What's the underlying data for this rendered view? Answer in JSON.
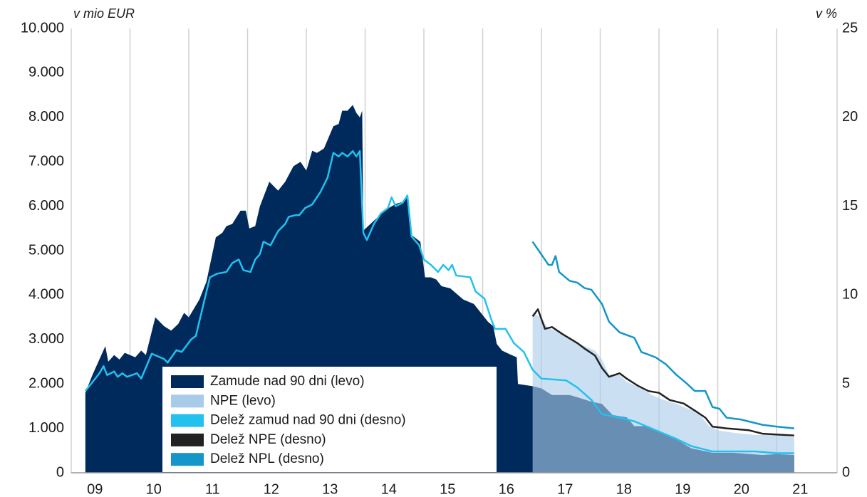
{
  "chart_data": {
    "type": "area",
    "y_label": "v mio EUR",
    "y2_label": "v %",
    "xlim": [
      2009,
      2022.03
    ],
    "xticks": [
      {
        "value": 2009,
        "label": "09"
      },
      {
        "value": 2010,
        "label": "10"
      },
      {
        "value": 2011,
        "label": "11"
      },
      {
        "value": 2012,
        "label": "12"
      },
      {
        "value": 2013,
        "label": "13"
      },
      {
        "value": 2014,
        "label": "14"
      },
      {
        "value": 2015,
        "label": "15"
      },
      {
        "value": 2016,
        "label": "16"
      },
      {
        "value": 2017,
        "label": "17"
      },
      {
        "value": 2018,
        "label": "18"
      },
      {
        "value": 2019,
        "label": "19"
      },
      {
        "value": 2020,
        "label": "20"
      },
      {
        "value": 2021,
        "label": "21"
      }
    ],
    "ylim": [
      0,
      10000
    ],
    "yticks": [
      0,
      {
        "value": 1000,
        "label": "1.000"
      },
      {
        "value": 2000,
        "label": "2.000"
      },
      {
        "value": 3000,
        "label": "3.000"
      },
      {
        "value": 4000,
        "label": "4.000"
      },
      {
        "value": 5000,
        "label": "5.000"
      },
      {
        "value": 6000,
        "label": "6.000"
      },
      {
        "value": 7000,
        "label": "7.000"
      },
      {
        "value": 8000,
        "label": "8.000"
      },
      {
        "value": 9000,
        "label": "9.000"
      },
      {
        "value": 10000,
        "label": "10.000"
      }
    ],
    "y2lim": [
      0,
      25
    ],
    "y2ticks": [
      0,
      5,
      10,
      15,
      20,
      25
    ],
    "grid": true,
    "series": [
      {
        "name": "Zamude nad 90 dni (levo)",
        "color": "#002a5c",
        "kind": "area",
        "x": [
          2009.24,
          2009.36,
          2009.58,
          2009.63,
          2009.73,
          2009.82,
          2009.91,
          2010.09,
          2010.19,
          2010.27,
          2010.43,
          2010.58,
          2010.7,
          2010.82,
          2010.92,
          2011.0,
          2011.18,
          2011.3,
          2011.46,
          2011.57,
          2011.64,
          2011.74,
          2011.88,
          2011.97,
          2012.03,
          2012.13,
          2012.21,
          2012.37,
          2012.52,
          2012.64,
          2012.78,
          2012.9,
          2013.0,
          2013.1,
          2013.18,
          2013.3,
          2013.46,
          2013.55,
          2013.61,
          2013.7,
          2013.79,
          2013.85,
          2013.91,
          2013.95,
          2013.97,
          2014.21,
          2014.39,
          2014.52,
          2014.64,
          2014.72,
          2014.79,
          2014.94,
          2015.02,
          2015.12,
          2015.21,
          2015.3,
          2015.45,
          2015.67,
          2015.85,
          2015.97,
          2016.09,
          2016.18,
          2016.24,
          2016.33,
          2016.49,
          2016.58,
          2016.6,
          2016.85,
          2017.0,
          2017.18,
          2017.48,
          2017.61,
          2017.85,
          2018.03,
          2018.21,
          2018.45,
          2018.58,
          2018.82,
          2019.06,
          2019.3,
          2019.55,
          2019.91,
          2020.27,
          2020.76,
          2021.0,
          2021.3
        ],
        "values": [
          1800,
          2200,
          2850,
          2500,
          2650,
          2550,
          2700,
          2600,
          2750,
          2650,
          3500,
          3300,
          3200,
          3350,
          3600,
          3500,
          3900,
          4300,
          5300,
          5400,
          5550,
          5600,
          5900,
          5900,
          5500,
          5550,
          6000,
          6550,
          6350,
          6550,
          6900,
          7000,
          6800,
          7250,
          7200,
          7300,
          7800,
          7850,
          8150,
          8150,
          8280,
          8100,
          8000,
          8150,
          5450,
          5750,
          5950,
          6050,
          6100,
          6200,
          5350,
          5200,
          4400,
          4400,
          4350,
          4200,
          4150,
          3900,
          3800,
          3600,
          3400,
          3300,
          2900,
          2750,
          2650,
          2600,
          2000,
          1950,
          1900,
          1750,
          1750,
          1700,
          1600,
          1550,
          1300,
          1250,
          1050,
          1050,
          900,
          750,
          550,
          450,
          450,
          400,
          420,
          400
        ]
      },
      {
        "name": "NPE (levo)",
        "color": "#a9cbea",
        "kind": "area",
        "x": [
          2016.85,
          2016.98,
          2017.12,
          2017.24,
          2017.48,
          2017.73,
          2017.91,
          2018.03,
          2018.15,
          2018.33,
          2018.45,
          2018.7,
          2018.88,
          2019.06,
          2019.3,
          2019.48,
          2019.67,
          2019.85,
          2020.03,
          2020.27,
          2020.64,
          2021.0,
          2021.3
        ],
        "values": [
          3600,
          3500,
          3250,
          3200,
          3000,
          2850,
          2750,
          2550,
          2200,
          2200,
          2050,
          1900,
          1750,
          1650,
          1550,
          1450,
          1350,
          1050,
          950,
          900,
          850,
          850,
          800
        ]
      },
      {
        "name": "Delež zamud nad 90 dni (desno)",
        "color": "#22c1ee",
        "kind": "line",
        "axis": "y2",
        "x": [
          2009.24,
          2009.48,
          2009.55,
          2009.61,
          2009.73,
          2009.79,
          2009.87,
          2009.95,
          2010.12,
          2010.19,
          2010.37,
          2010.58,
          2010.64,
          2010.79,
          2010.88,
          2011.04,
          2011.12,
          2011.28,
          2011.36,
          2011.48,
          2011.64,
          2011.74,
          2011.85,
          2011.93,
          2012.05,
          2012.13,
          2012.21,
          2012.27,
          2012.39,
          2012.52,
          2012.64,
          2012.7,
          2012.82,
          2012.88,
          2012.98,
          2013.1,
          2013.24,
          2013.36,
          2013.46,
          2013.55,
          2013.61,
          2013.7,
          2013.79,
          2013.85,
          2013.91,
          2013.97,
          2014.03,
          2014.15,
          2014.27,
          2014.39,
          2014.45,
          2014.52,
          2014.64,
          2014.72,
          2014.79,
          2014.92,
          2015.0,
          2015.12,
          2015.24,
          2015.33,
          2015.42,
          2015.48,
          2015.55,
          2015.79,
          2015.88,
          2016.03,
          2016.15,
          2016.21,
          2016.39,
          2016.53,
          2016.7,
          2016.85,
          2017.0,
          2017.42,
          2017.61,
          2017.85,
          2018.03,
          2018.33,
          2018.58,
          2018.94,
          2019.3,
          2019.55,
          2019.91,
          2020.64,
          2021.0,
          2021.3
        ],
        "values": [
          4.6,
          5.6,
          6.0,
          5.5,
          5.7,
          5.4,
          5.6,
          5.4,
          5.6,
          5.3,
          6.7,
          6.4,
          6.2,
          6.9,
          6.8,
          7.5,
          7.7,
          9.9,
          11.0,
          11.2,
          11.3,
          11.8,
          12.0,
          11.4,
          11.3,
          12.0,
          12.3,
          13.0,
          12.8,
          13.6,
          14.0,
          14.4,
          14.5,
          14.5,
          14.9,
          15.1,
          15.8,
          16.6,
          18.0,
          17.8,
          18.0,
          17.8,
          18.1,
          17.8,
          18.1,
          13.5,
          13.1,
          14.0,
          14.6,
          14.9,
          15.5,
          15.0,
          15.2,
          15.6,
          13.3,
          12.8,
          12.0,
          11.7,
          11.3,
          11.7,
          11.4,
          11.7,
          11.1,
          11.0,
          10.2,
          9.8,
          8.6,
          8.1,
          8.1,
          7.3,
          6.8,
          5.8,
          5.3,
          5.2,
          4.8,
          4.1,
          3.3,
          3.1,
          2.9,
          2.4,
          1.9,
          1.5,
          1.2,
          1.2,
          1.1,
          1.1
        ]
      },
      {
        "name": "Delež NPE (desno)",
        "color": "#222222",
        "kind": "line",
        "axis": "y2",
        "x": [
          2016.85,
          2016.94,
          2017.06,
          2017.18,
          2017.36,
          2017.61,
          2017.73,
          2017.91,
          2018.03,
          2018.15,
          2018.33,
          2018.45,
          2018.64,
          2018.82,
          2019.0,
          2019.18,
          2019.42,
          2019.61,
          2019.79,
          2019.91,
          2020.15,
          2020.52,
          2020.76,
          2021.3
        ],
        "values": [
          8.8,
          9.2,
          8.1,
          8.2,
          7.8,
          7.3,
          7.0,
          6.6,
          5.9,
          5.4,
          5.6,
          5.3,
          4.9,
          4.6,
          4.5,
          4.1,
          3.9,
          3.5,
          3.1,
          2.6,
          2.5,
          2.4,
          2.2,
          2.1
        ]
      },
      {
        "name": "Delež NPL (desno)",
        "color": "#1496c8",
        "kind": "line",
        "axis": "y2",
        "x": [
          2016.85,
          2017.12,
          2017.18,
          2017.24,
          2017.3,
          2017.48,
          2017.61,
          2017.73,
          2017.85,
          2018.03,
          2018.15,
          2018.33,
          2018.58,
          2018.7,
          2018.94,
          2019.12,
          2019.3,
          2019.48,
          2019.61,
          2019.79,
          2019.91,
          2020.03,
          2020.15,
          2020.39,
          2020.76,
          2021.0,
          2021.3
        ],
        "values": [
          13.0,
          11.7,
          11.7,
          12.2,
          11.3,
          10.8,
          10.7,
          10.4,
          10.3,
          9.5,
          8.5,
          7.9,
          7.6,
          6.8,
          6.5,
          6.1,
          5.5,
          5.0,
          4.6,
          4.6,
          3.7,
          3.6,
          3.1,
          3.0,
          2.7,
          2.6,
          2.5
        ]
      }
    ]
  }
}
